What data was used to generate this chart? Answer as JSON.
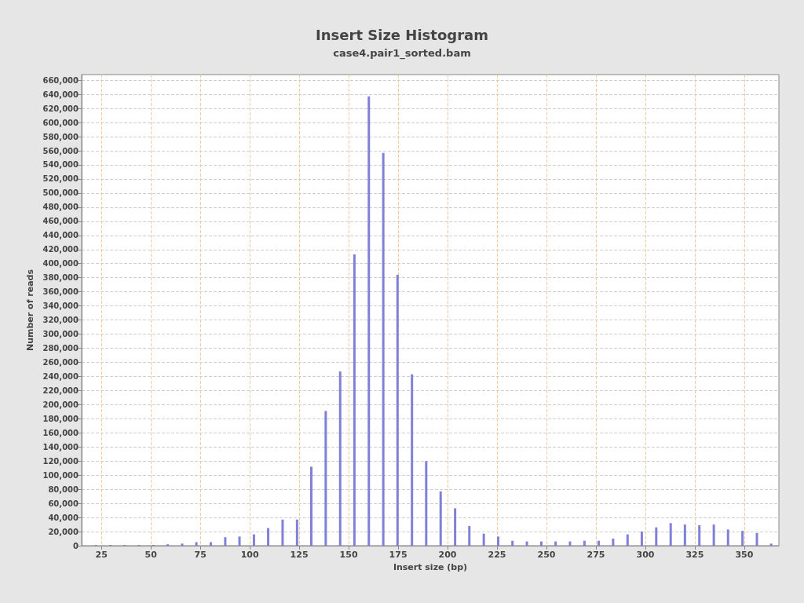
{
  "chart_data": {
    "type": "bar",
    "title": "Insert Size Histogram",
    "subtitle": "case4.pair1_sorted.bam",
    "xlabel": "Insert size (bp)",
    "ylabel": "Number of reads",
    "x": [
      22.2,
      29.5,
      36.7,
      44,
      51.2,
      58.5,
      65.8,
      73,
      80.3,
      87.6,
      94.8,
      102.1,
      109.3,
      116.6,
      123.9,
      131.1,
      138.4,
      145.7,
      152.9,
      160.2,
      167.5,
      174.7,
      182,
      189.2,
      196.5,
      203.8,
      211,
      218.3,
      225.6,
      232.8,
      240.1,
      247.4,
      254.6,
      261.9,
      269.2,
      276.4,
      283.7,
      291,
      298.2,
      305.5,
      312.8,
      320,
      327.3,
      334.6,
      341.8,
      349.1,
      356.4,
      363.6
    ],
    "values": [
      1000,
      1000,
      1000,
      1000,
      1000,
      2000,
      3000,
      5000,
      5000,
      12000,
      13000,
      16000,
      25000,
      37000,
      37000,
      112000,
      191000,
      247000,
      413000,
      637000,
      557000,
      384000,
      243000,
      120000,
      77000,
      53000,
      28000,
      17000,
      13000,
      7000,
      6000,
      6000,
      6000,
      6000,
      7000,
      7000,
      10000,
      16000,
      20000,
      26000,
      32000,
      30000,
      29000,
      30000,
      23000,
      21000,
      18000,
      3000
    ],
    "color": "#8080d8",
    "xlim": [
      15,
      367.5
    ],
    "xticks": [
      25,
      50,
      75,
      100,
      125,
      150,
      175,
      200,
      225,
      250,
      275,
      300,
      325,
      350
    ],
    "ylim": [
      0,
      668000
    ],
    "yticks": [
      0,
      {
        "value": 20000,
        "label": "20,000"
      },
      {
        "value": 40000,
        "label": "40,000"
      },
      {
        "value": 60000,
        "label": "60,000"
      },
      {
        "value": 80000,
        "label": "80,000"
      },
      {
        "value": 100000,
        "label": "100,000"
      },
      {
        "value": 120000,
        "label": "120,000"
      },
      {
        "value": 140000,
        "label": "140,000"
      },
      {
        "value": 160000,
        "label": "160,000"
      },
      {
        "value": 180000,
        "label": "180,000"
      },
      {
        "value": 200000,
        "label": "200,000"
      },
      {
        "value": 220000,
        "label": "220,000"
      },
      {
        "value": 240000,
        "label": "240,000"
      },
      {
        "value": 260000,
        "label": "260,000"
      },
      {
        "value": 280000,
        "label": "280,000"
      },
      {
        "value": 300000,
        "label": "300,000"
      },
      {
        "value": 320000,
        "label": "320,000"
      },
      {
        "value": 340000,
        "label": "340,000"
      },
      {
        "value": 360000,
        "label": "360,000"
      },
      {
        "value": 380000,
        "label": "380,000"
      },
      {
        "value": 400000,
        "label": "400,000"
      },
      {
        "value": 420000,
        "label": "420,000"
      },
      {
        "value": 440000,
        "label": "440,000"
      },
      {
        "value": 460000,
        "label": "460,000"
      },
      {
        "value": 480000,
        "label": "480,000"
      },
      {
        "value": 500000,
        "label": "500,000"
      },
      {
        "value": 520000,
        "label": "520,000"
      },
      {
        "value": 540000,
        "label": "540,000"
      },
      {
        "value": 560000,
        "label": "560,000"
      },
      {
        "value": 580000,
        "label": "580,000"
      },
      {
        "value": 600000,
        "label": "600,000"
      },
      {
        "value": 620000,
        "label": "620,000"
      },
      {
        "value": 640000,
        "label": "640,000"
      },
      {
        "value": 660000,
        "label": "660,000"
      }
    ],
    "grid": true
  }
}
